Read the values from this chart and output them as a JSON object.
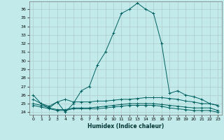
{
  "xlabel": "Humidex (Indice chaleur)",
  "ylabel": "",
  "bg_color": "#c2eaea",
  "grid_color": "#b0cccc",
  "line_color": "#006060",
  "xlim": [
    -0.5,
    23.5
  ],
  "ylim": [
    23.7,
    36.9
  ],
  "xticks": [
    0,
    1,
    2,
    3,
    4,
    5,
    6,
    7,
    8,
    9,
    10,
    11,
    12,
    13,
    14,
    15,
    16,
    17,
    18,
    19,
    20,
    21,
    22,
    23
  ],
  "yticks": [
    24,
    25,
    26,
    27,
    28,
    29,
    30,
    31,
    32,
    33,
    34,
    35,
    36
  ],
  "series": [
    {
      "x": [
        0,
        1,
        2,
        3,
        4,
        5,
        6,
        7,
        8,
        9,
        10,
        11,
        12,
        13,
        14,
        15,
        16,
        17,
        18,
        19,
        20,
        21,
        22,
        23
      ],
      "y": [
        26.0,
        25.0,
        24.5,
        25.2,
        24.0,
        25.0,
        26.5,
        27.0,
        29.5,
        31.0,
        33.2,
        35.5,
        36.0,
        36.7,
        36.0,
        35.5,
        32.0,
        26.2,
        26.5,
        26.0,
        25.8,
        25.5,
        25.0,
        24.8
      ]
    },
    {
      "x": [
        0,
        1,
        2,
        3,
        4,
        5,
        6,
        7,
        8,
        9,
        10,
        11,
        12,
        13,
        14,
        15,
        16,
        17,
        18,
        19,
        20,
        21,
        22,
        23
      ],
      "y": [
        25.5,
        25.0,
        24.7,
        25.2,
        25.5,
        25.2,
        25.2,
        25.2,
        25.3,
        25.3,
        25.4,
        25.5,
        25.5,
        25.6,
        25.7,
        25.7,
        25.7,
        25.6,
        25.5,
        25.3,
        25.2,
        25.0,
        25.0,
        24.8
      ]
    },
    {
      "x": [
        0,
        1,
        2,
        3,
        4,
        5,
        6,
        7,
        8,
        9,
        10,
        11,
        12,
        13,
        14,
        15,
        16,
        17,
        18,
        19,
        20,
        21,
        22,
        23
      ],
      "y": [
        25.0,
        24.8,
        24.5,
        24.3,
        24.3,
        24.5,
        24.5,
        24.5,
        24.6,
        24.7,
        24.8,
        24.9,
        25.0,
        25.0,
        25.0,
        25.0,
        24.9,
        24.8,
        24.7,
        24.6,
        24.5,
        24.5,
        24.5,
        24.2
      ]
    },
    {
      "x": [
        0,
        1,
        2,
        3,
        4,
        5,
        6,
        7,
        8,
        9,
        10,
        11,
        12,
        13,
        14,
        15,
        16,
        17,
        18,
        19,
        20,
        21,
        22,
        23
      ],
      "y": [
        24.8,
        24.6,
        24.4,
        24.2,
        24.2,
        24.4,
        24.4,
        24.4,
        24.4,
        24.5,
        24.6,
        24.7,
        24.8,
        24.8,
        24.8,
        24.8,
        24.7,
        24.5,
        24.4,
        24.3,
        24.2,
        24.2,
        24.2,
        24.0
      ]
    }
  ]
}
